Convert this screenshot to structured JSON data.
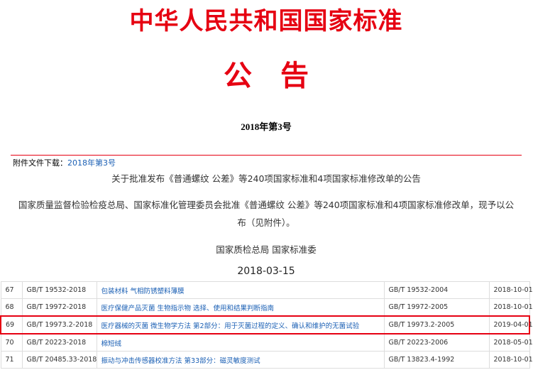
{
  "header": {
    "title": "中华人民共和国国家标准",
    "subtitle": "公　告",
    "number": "2018年第3号"
  },
  "attachment": {
    "label": "附件文件下载：",
    "link": "2018年第3号"
  },
  "notice": {
    "heading": "关于批准发布《普通螺纹 公差》等240项国家标准和4项国家标准修改单的公告",
    "body": "国家质量监督检验检疫总局、国家标准化管理委员会批准《普通螺纹 公差》等240项国家标准和4项国家标准修改单，现予以公布（见附件）。",
    "issuer": "国家质检总局 国家标准委",
    "date": "2018-03-15"
  },
  "table": {
    "rows": [
      [
        "67",
        "GB/T 19532-2018",
        "包装材料 气相防锈塑料薄膜",
        "GB/T 19532-2004",
        "2018-10-01"
      ],
      [
        "68",
        "GB/T 19972-2018",
        "医疗保健产品灭菌 生物指示物 选择、使用和结果判断指南",
        "GB/T 19972-2005",
        "2018-10-01"
      ],
      [
        "69",
        "GB/T 19973.2-2018",
        "医疗器械的灭菌 微生物学方法 第2部分：用于灭菌过程的定义、确认和维护的无菌试验",
        "GB/T 19973.2-2005",
        "2019-04-01"
      ],
      [
        "70",
        "GB/T 20223-2018",
        "棉短绒",
        "GB/T 20223-2006",
        "2018-05-01"
      ],
      [
        "71",
        "GB/T 20485.33-2018",
        "振动与冲击传感器校准方法 第33部分：磁灵敏度测试",
        "GB/T 13823.4-1992",
        "2018-10-01"
      ]
    ]
  }
}
